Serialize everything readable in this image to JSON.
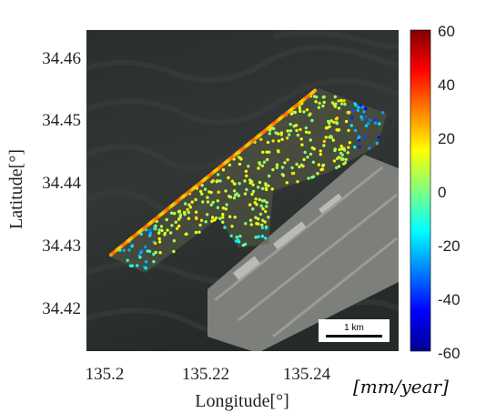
{
  "map": {
    "x_ticks": [
      "135.2",
      "135.22",
      "135.24"
    ],
    "y_ticks": [
      "34.46",
      "34.45",
      "34.44",
      "34.43",
      "34.42"
    ],
    "xlabel": "Longitude[°]",
    "ylabel": "Latitude[°]",
    "scale_bar": "1 km"
  },
  "colorbar": {
    "ticks": [
      "60",
      "40",
      "20",
      "0",
      "-20",
      "-40",
      "-60"
    ],
    "unit": "[mm/year]",
    "range": [
      -60,
      60
    ],
    "colormap": "jet"
  },
  "colors": {
    "sea": "#2c3030",
    "airport": "#7d7f7b",
    "frame": "#000000"
  }
}
